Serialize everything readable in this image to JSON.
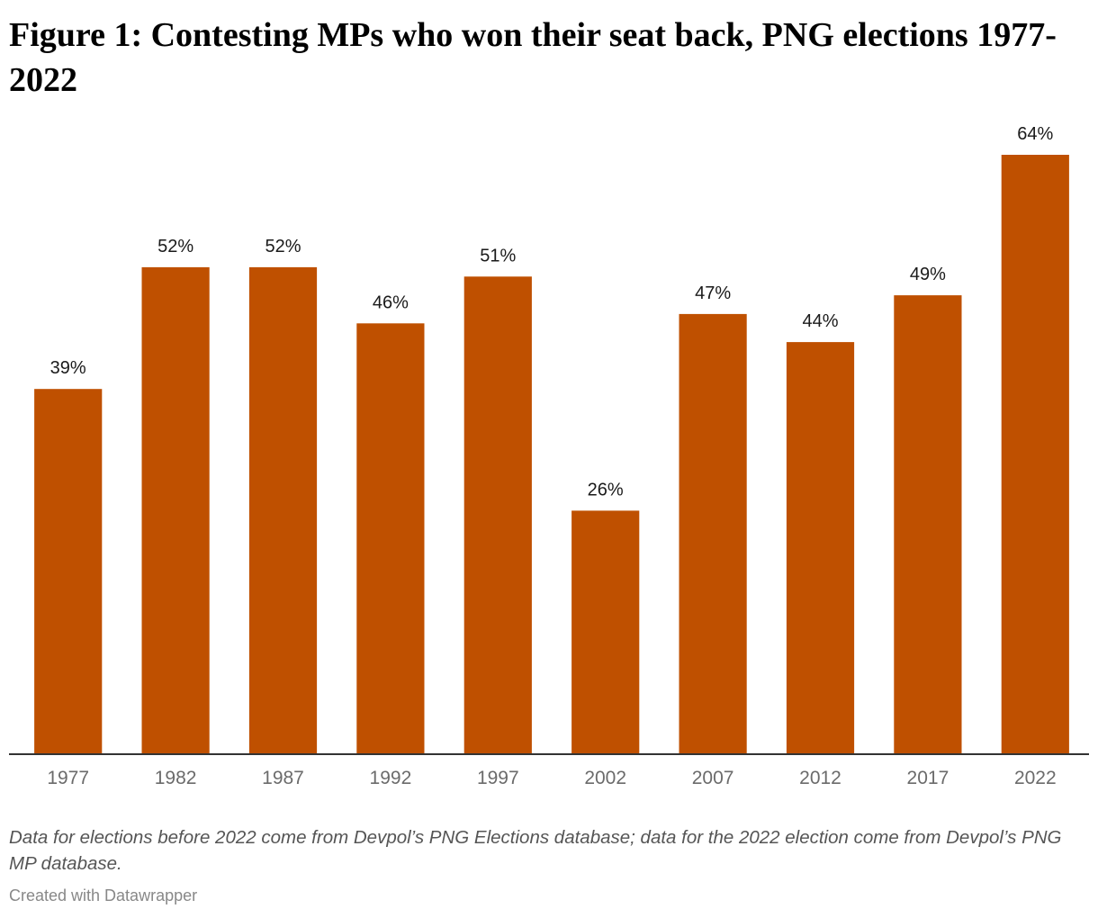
{
  "chart_data": {
    "type": "bar",
    "title": "Figure 1: Contesting MPs who won their seat back, PNG elections 1977-2022",
    "categories": [
      "1977",
      "1982",
      "1987",
      "1992",
      "1997",
      "2002",
      "2007",
      "2012",
      "2017",
      "2022"
    ],
    "values": [
      39,
      52,
      52,
      46,
      51,
      26,
      47,
      44,
      49,
      64
    ],
    "value_labels": [
      "39%",
      "52%",
      "52%",
      "46%",
      "51%",
      "26%",
      "47%",
      "44%",
      "49%",
      "64%"
    ],
    "unit": "%",
    "ylim": [
      0,
      64
    ],
    "xlabel": "",
    "ylabel": "",
    "grid": false,
    "bar_color": "#bf5000",
    "baseline_color": "#333333"
  },
  "notes": "Data for elections before 2022 come from Devpol’s PNG Elections database; data for the 2022 election come from Devpol’s PNG MP database.",
  "credit": "Created with Datawrapper"
}
